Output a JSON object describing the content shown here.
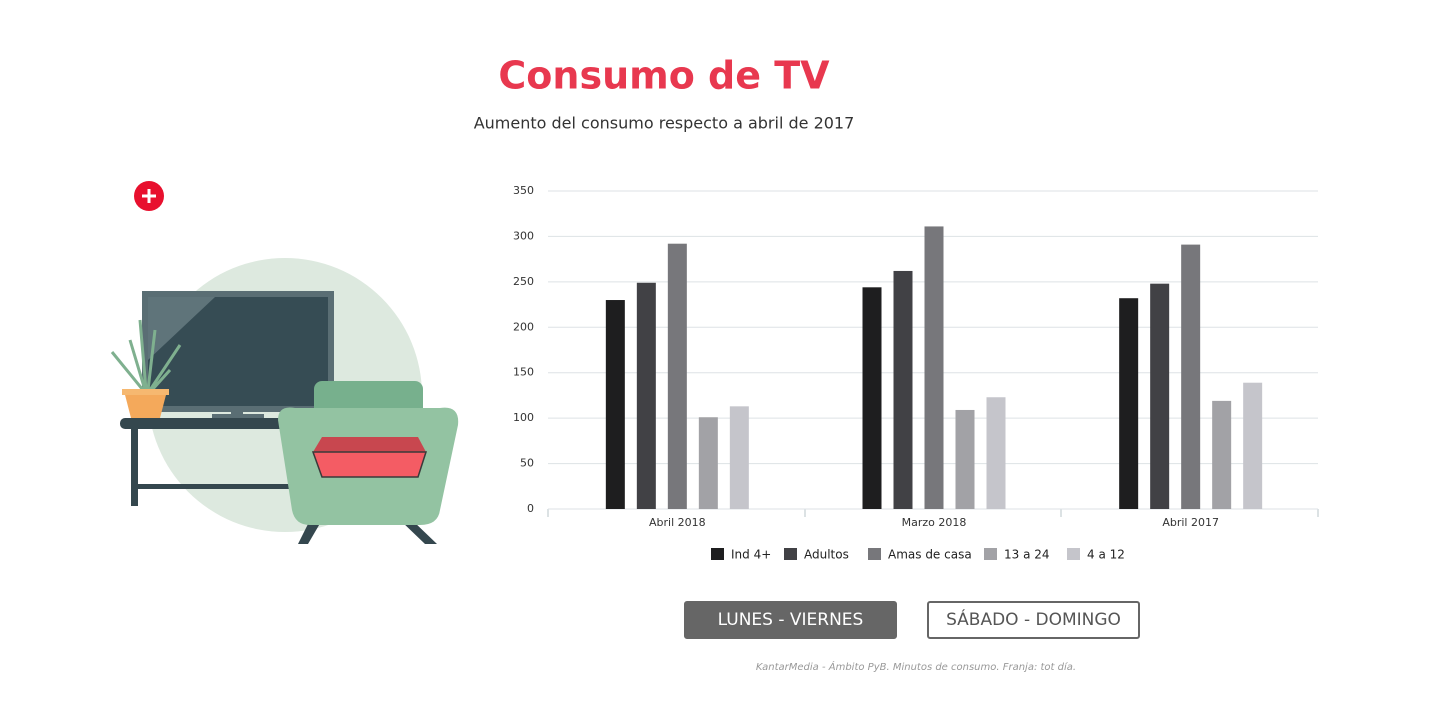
{
  "title": "Consumo de TV",
  "subtitle": "Aumento del consumo respecto a abril de 2017",
  "chart_data": {
    "type": "bar",
    "categories": [
      "Abril 2018",
      "Marzo 2018",
      "Abril 2017"
    ],
    "series": [
      {
        "name": "Ind 4+",
        "color": "#1e1e1f",
        "values": [
          230,
          244,
          232
        ]
      },
      {
        "name": "Adultos",
        "color": "#414145",
        "values": [
          249,
          262,
          248
        ]
      },
      {
        "name": "Amas de casa",
        "color": "#77777b",
        "values": [
          292,
          311,
          291
        ]
      },
      {
        "name": "13 a 24",
        "color": "#a2a2a6",
        "values": [
          101,
          109,
          119
        ]
      },
      {
        "name": "4 a 12",
        "color": "#c5c5cb",
        "values": [
          113,
          123,
          139
        ]
      }
    ],
    "ylim": [
      0,
      350
    ],
    "yticks": [
      0,
      50,
      100,
      150,
      200,
      250,
      300,
      350
    ],
    "grid": true,
    "legend": "bottom"
  },
  "buttons": [
    "LUNES - VIERNES",
    "SÁBADO - DOMINGO"
  ],
  "footer": "KantarMedia - Ámbito PyB. Minutos de consumo. Franja: tot día."
}
